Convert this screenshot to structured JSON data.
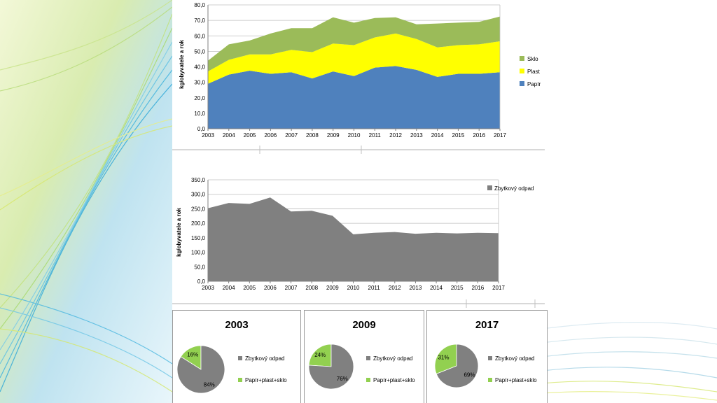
{
  "chart_data": [
    {
      "type": "area",
      "stacked": true,
      "ylabel": "kg/obyvatele a rok",
      "ylim": [
        0,
        80
      ],
      "yticks": [
        "0,0",
        "10,0",
        "20,0",
        "30,0",
        "40,0",
        "50,0",
        "60,0",
        "70,0",
        "80,0"
      ],
      "x": [
        "2003",
        "2004",
        "2005",
        "2006",
        "2007",
        "2008",
        "2009",
        "2010",
        "2011",
        "2012",
        "2013",
        "2014",
        "2015",
        "2016",
        "2017"
      ],
      "grid": true,
      "legend": "right",
      "series": [
        {
          "name": "Papír",
          "color": "#4f81bd",
          "values": [
            29.0,
            35.0,
            37.5,
            35.5,
            36.5,
            32.5,
            37.0,
            34.0,
            39.5,
            40.5,
            38.0,
            33.5,
            35.5,
            35.5,
            36.5
          ]
        },
        {
          "name": "Plast",
          "color": "#ffff00",
          "values": [
            8.0,
            9.5,
            10.5,
            12.5,
            14.5,
            17.0,
            18.0,
            20.0,
            19.5,
            21.0,
            20.0,
            19.0,
            18.5,
            19.0,
            20.0
          ]
        },
        {
          "name": "Sklo",
          "color": "#9bbb59",
          "values": [
            7.0,
            10.0,
            9.0,
            13.5,
            14.0,
            15.5,
            17.0,
            14.5,
            12.5,
            10.5,
            9.5,
            15.5,
            14.5,
            14.5,
            16.0
          ]
        }
      ]
    },
    {
      "type": "area",
      "ylabel": "kg/obyvatele a rok",
      "ylim": [
        0,
        350
      ],
      "yticks": [
        "0,0",
        "50,0",
        "100,0",
        "150,0",
        "200,0",
        "250,0",
        "300,0",
        "350,0"
      ],
      "x": [
        "2003",
        "2004",
        "2005",
        "2006",
        "2007",
        "2008",
        "2009",
        "2010",
        "2011",
        "2012",
        "2013",
        "2014",
        "2015",
        "2016",
        "2017"
      ],
      "grid": true,
      "legend": "top-right",
      "series": [
        {
          "name": "Zbytkový odpad",
          "color": "#808080",
          "values": [
            252,
            270,
            267,
            289,
            241,
            243,
            226,
            162,
            167,
            170,
            164,
            167,
            165,
            167,
            166
          ]
        }
      ]
    },
    {
      "type": "pie",
      "title": "2003",
      "legend": "right",
      "slices": [
        {
          "name": "Zbytkový odpad",
          "value": 84,
          "label": "84%",
          "color": "#808080"
        },
        {
          "name": "Papír+plast+sklo",
          "value": 16,
          "label": "16%",
          "color": "#92d050"
        }
      ]
    },
    {
      "type": "pie",
      "title": "2009",
      "legend": "right",
      "slices": [
        {
          "name": "Zbytkový odpad",
          "value": 76,
          "label": "76%",
          "color": "#808080"
        },
        {
          "name": "Papír+plast+sklo",
          "value": 24,
          "label": "24%",
          "color": "#92d050"
        }
      ]
    },
    {
      "type": "pie",
      "title": "2017",
      "legend": "right",
      "slices": [
        {
          "name": "Zbytkový odpad",
          "value": 69,
          "label": "69%",
          "color": "#808080"
        },
        {
          "name": "Papír+plast+sklo",
          "value": 31,
          "label": "31%",
          "color": "#92d050"
        }
      ]
    }
  ]
}
